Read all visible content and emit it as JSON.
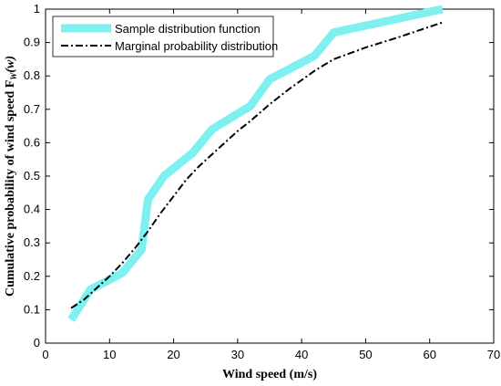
{
  "chart_data": {
    "type": "line",
    "xlabel": "Wind speed (m/s)",
    "ylabel_main": "Cumulative probability of wind speed F",
    "ylabel_sub": "W",
    "ylabel_arg": "(w)",
    "xlim": [
      0,
      70
    ],
    "ylim": [
      0,
      1
    ],
    "xticks": [
      0,
      10,
      20,
      30,
      40,
      50,
      60,
      70
    ],
    "yticks": [
      0,
      0.1,
      0.2,
      0.3,
      0.4,
      0.5,
      0.6,
      0.7,
      0.8,
      0.9,
      1
    ],
    "grid": false,
    "legend_position": "top-left",
    "series": [
      {
        "name": "Sample distribution function",
        "color": "#7ff0f0",
        "style": "solid-thick",
        "x": [
          4,
          7,
          12,
          15,
          16,
          18.5,
          23,
          26,
          32,
          35,
          42,
          45,
          62
        ],
        "y": [
          0.07,
          0.16,
          0.21,
          0.28,
          0.43,
          0.5,
          0.57,
          0.64,
          0.71,
          0.79,
          0.86,
          0.93,
          1.0
        ]
      },
      {
        "name": "Marginal probability distribution",
        "color": "#000000",
        "style": "dash-dot",
        "x": [
          4,
          6,
          8,
          10,
          12,
          14,
          16,
          18,
          20,
          22,
          24,
          26,
          28,
          30,
          32,
          35,
          38,
          42,
          45,
          50,
          55,
          62
        ],
        "y": [
          0.105,
          0.13,
          0.165,
          0.2,
          0.24,
          0.285,
          0.335,
          0.39,
          0.44,
          0.49,
          0.53,
          0.565,
          0.6,
          0.635,
          0.665,
          0.715,
          0.76,
          0.815,
          0.85,
          0.885,
          0.915,
          0.96
        ]
      }
    ]
  }
}
